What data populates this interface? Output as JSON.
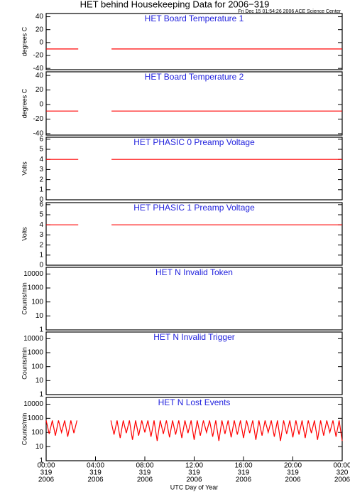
{
  "page": {
    "title": "HET behind Housekeeping Data for 2006−319",
    "subtitle": "Fri Dec 15 01:54:26 2006 ACE Science Center"
  },
  "chart_data": [
    {
      "type": "line",
      "title": "HET Board Temperature 1",
      "ylabel": "degrees C",
      "ylim": [
        -42,
        45
      ],
      "yticks": [
        -40,
        -20,
        0,
        20,
        40
      ],
      "xlim": [
        0,
        24
      ],
      "x": [
        0,
        2.6,
        3.9,
        5.3,
        24
      ],
      "series": [
        {
          "color": "#ff0000",
          "values": [
            -10,
            -10,
            null,
            -10,
            -10
          ]
        }
      ]
    },
    {
      "type": "line",
      "title": "HET Board Temperature 2",
      "ylabel": "degrees C",
      "ylim": [
        -42,
        45
      ],
      "yticks": [
        -40,
        -20,
        0,
        20,
        40
      ],
      "xlim": [
        0,
        24
      ],
      "x": [
        0,
        2.6,
        3.9,
        5.3,
        24
      ],
      "series": [
        {
          "color": "#ff0000",
          "values": [
            -9,
            -9,
            null,
            -9,
            -9
          ]
        }
      ]
    },
    {
      "type": "line",
      "title": "HET PHASIC 0 Preamp Voltage",
      "ylabel": "Volts",
      "ylim": [
        0,
        6.2
      ],
      "yticks": [
        0,
        1,
        2,
        3,
        4,
        5,
        6
      ],
      "xlim": [
        0,
        24
      ],
      "x": [
        0,
        2.6,
        3.9,
        5.3,
        24
      ],
      "series": [
        {
          "color": "#ff0000",
          "values": [
            4,
            4,
            null,
            4,
            4
          ]
        }
      ]
    },
    {
      "type": "line",
      "title": "HET PHASIC 1 Preamp Voltage",
      "ylabel": "Volts",
      "ylim": [
        0,
        6.2
      ],
      "yticks": [
        0,
        1,
        2,
        3,
        4,
        5,
        6
      ],
      "xlim": [
        0,
        24
      ],
      "x": [
        0,
        2.6,
        3.9,
        5.3,
        24
      ],
      "series": [
        {
          "color": "#ff0000",
          "values": [
            4,
            4,
            null,
            4,
            4
          ]
        }
      ]
    },
    {
      "type": "line",
      "title": "HET N Invalid Token",
      "ylabel": "Counts/min",
      "log": true,
      "ylim": [
        1,
        30000
      ],
      "yticks": [
        1,
        10,
        100,
        1000,
        10000
      ],
      "xlim": [
        0,
        24
      ]
    },
    {
      "type": "line",
      "title": "HET N Invalid Trigger",
      "ylabel": "Counts/min",
      "log": true,
      "ylim": [
        1,
        30000
      ],
      "yticks": [
        1,
        10,
        100,
        1000,
        10000
      ],
      "xlim": [
        0,
        24
      ]
    },
    {
      "type": "line",
      "title": "HET N Lost Events",
      "ylabel": "Counts/min",
      "log": true,
      "ylim": [
        1,
        30000
      ],
      "yticks": [
        1,
        10,
        100,
        1000,
        10000
      ],
      "xlim": [
        0,
        24
      ],
      "xlabel": "UTC Day of Year",
      "xticks": [
        {
          "value": 0,
          "label": "00:00",
          "day": "319",
          "year": "2006"
        },
        {
          "value": 4,
          "label": "04:00",
          "day": "319",
          "year": "2006"
        },
        {
          "value": 8,
          "label": "08:00",
          "day": "319",
          "year": "2006"
        },
        {
          "value": 12,
          "label": "12:00",
          "day": "319",
          "year": "2006"
        },
        {
          "value": 16,
          "label": "16:00",
          "day": "319",
          "year": "2006"
        },
        {
          "value": 20,
          "label": "20:00",
          "day": "319",
          "year": "2006"
        },
        {
          "value": 24,
          "label": "00:00",
          "day": "320",
          "year": "2006"
        }
      ],
      "x": [
        0,
        0.25,
        0.5,
        0.75,
        1,
        1.25,
        1.5,
        1.75,
        2,
        2.25,
        2.5,
        3.9,
        5.25,
        5.5,
        5.75,
        6,
        6.25,
        6.5,
        6.75,
        7,
        7.25,
        7.5,
        7.75,
        8,
        8.25,
        8.5,
        8.75,
        9,
        9.25,
        9.5,
        9.75,
        10,
        10.25,
        10.5,
        10.75,
        11,
        11.25,
        11.5,
        11.75,
        12,
        12.25,
        12.5,
        12.75,
        13,
        13.25,
        13.5,
        13.75,
        14,
        14.25,
        14.5,
        14.75,
        15,
        15.25,
        15.5,
        15.75,
        16,
        16.25,
        16.5,
        16.75,
        17,
        17.25,
        17.5,
        17.75,
        18,
        18.25,
        18.5,
        18.75,
        19,
        19.25,
        19.5,
        19.75,
        20,
        20.25,
        20.5,
        20.75,
        21,
        21.25,
        21.5,
        21.75,
        22,
        22.25,
        22.5,
        22.75,
        23,
        23.25,
        23.5,
        23.75,
        24
      ],
      "series": [
        {
          "color": "#ff0000",
          "values": [
            700,
            80,
            700,
            60,
            700,
            100,
            700,
            50,
            700,
            90,
            700,
            null,
            700,
            70,
            700,
            40,
            700,
            90,
            700,
            30,
            700,
            60,
            700,
            100,
            700,
            50,
            700,
            25,
            700,
            80,
            700,
            45,
            700,
            70,
            700,
            40,
            700,
            90,
            700,
            30,
            700,
            60,
            700,
            100,
            700,
            50,
            700,
            25,
            700,
            80,
            700,
            45,
            700,
            70,
            700,
            40,
            700,
            90,
            700,
            30,
            700,
            60,
            700,
            100,
            700,
            50,
            700,
            25,
            700,
            80,
            700,
            45,
            700,
            70,
            700,
            40,
            700,
            90,
            700,
            30,
            700,
            60,
            700,
            100,
            700,
            50,
            700,
            25
          ]
        }
      ]
    }
  ]
}
